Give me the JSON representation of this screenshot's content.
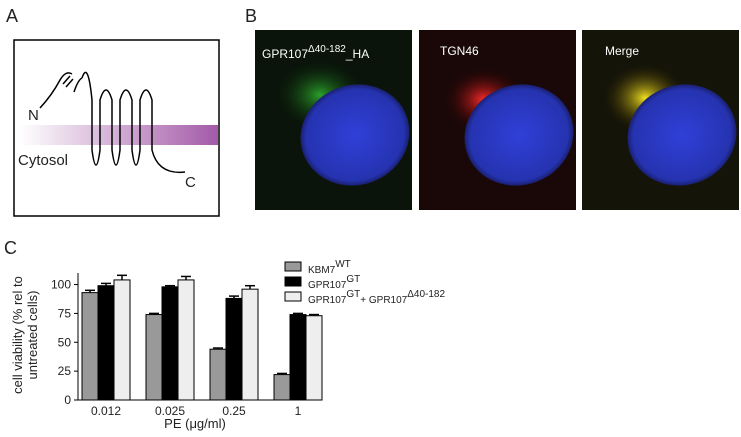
{
  "figure": {
    "panel_a": {
      "label": "A",
      "n_term": "N",
      "cytosol": "Cytosol",
      "c_term": "C"
    },
    "panel_b": {
      "label": "B",
      "images": [
        {
          "title": [
            {
              "text": "GPR107"
            },
            {
              "text": "Δ40-182",
              "sup": true
            },
            {
              "text": "_HA"
            }
          ]
        },
        {
          "title": [
            {
              "text": "TGN46"
            }
          ]
        },
        {
          "title": [
            {
              "text": "Merge"
            }
          ]
        }
      ]
    },
    "panel_c": {
      "label": "C"
    }
  },
  "chart_data": {
    "type": "bar",
    "y_label": [
      "cell viability (% rel to",
      "untreated cells)"
    ],
    "x_label": "PE (μg/ml)",
    "categories": [
      "0.012",
      "0.025",
      "0.25",
      "1"
    ],
    "series": [
      {
        "name": [
          {
            "text": "KBM7"
          },
          {
            "text": "WT",
            "sup": true
          }
        ],
        "color": "#999999",
        "values": [
          93,
          74,
          44,
          22
        ],
        "errors": [
          2,
          1,
          1,
          1
        ]
      },
      {
        "name": [
          {
            "text": "GPR107"
          },
          {
            "text": "GT",
            "sup": true
          }
        ],
        "color": "#000000",
        "values": [
          99,
          98,
          88,
          74
        ],
        "errors": [
          2,
          1,
          2,
          1
        ]
      },
      {
        "name": [
          {
            "text": "GPR107"
          },
          {
            "text": "GT",
            "sup": true
          },
          {
            "text": "+ GPR107"
          },
          {
            "text": "Δ40-182",
            "sup": true
          }
        ],
        "color": "#eeeeee",
        "values": [
          104,
          104,
          96,
          73
        ],
        "errors": [
          4,
          3,
          3,
          1
        ]
      }
    ],
    "ylim": [
      0,
      110
    ],
    "yticks": [
      0,
      25,
      50,
      75,
      100
    ]
  }
}
